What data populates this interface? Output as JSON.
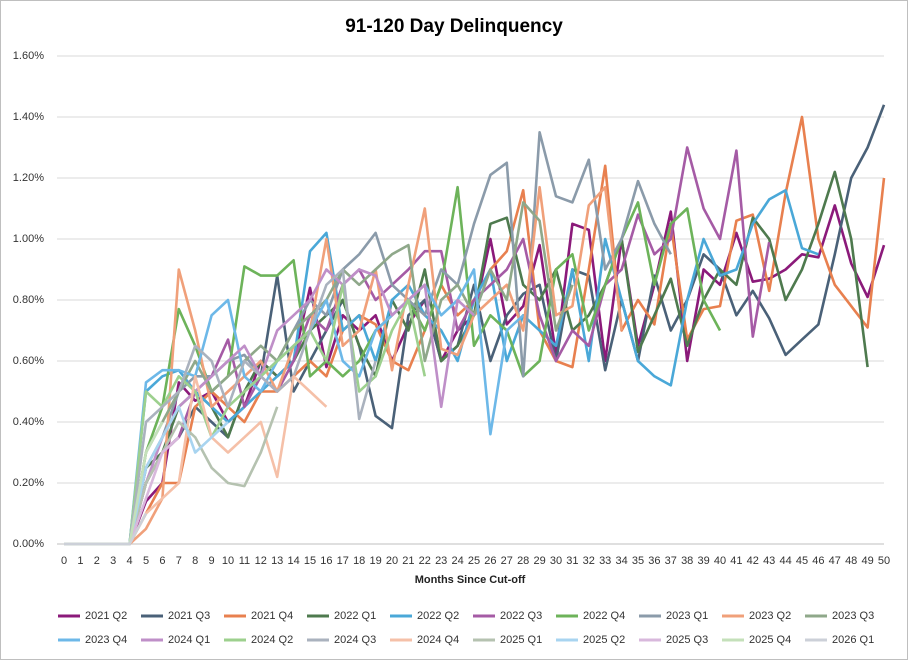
{
  "chart_data": {
    "type": "line",
    "title": "91-120 Day Delinquency",
    "x_label": "Months Since Cut-off",
    "x": [
      0,
      1,
      2,
      3,
      4,
      5,
      6,
      7,
      8,
      9,
      10,
      11,
      12,
      13,
      14,
      15,
      16,
      17,
      18,
      19,
      20,
      21,
      22,
      23,
      24,
      25,
      26,
      27,
      28,
      29,
      30,
      31,
      32,
      33,
      34,
      35,
      36,
      37,
      38,
      39,
      40,
      41,
      42,
      43,
      44,
      45,
      46,
      47,
      48,
      49,
      50
    ],
    "xlim": [
      0,
      50
    ],
    "ylim": [
      0,
      1.6
    ],
    "yticks": [
      {
        "value": 0,
        "label": "0.00%"
      },
      {
        "value": 0.2,
        "label": "0.20%"
      },
      {
        "value": 0.4,
        "label": "0.40%"
      },
      {
        "value": 0.6,
        "label": "0.60%"
      },
      {
        "value": 0.8,
        "label": "0.80%"
      },
      {
        "value": 1.0,
        "label": "1.00%"
      },
      {
        "value": 1.2,
        "label": "1.20%"
      },
      {
        "value": 1.4,
        "label": "1.40%"
      },
      {
        "value": 1.6,
        "label": "1.60%"
      }
    ],
    "grid": true,
    "legend": "bottom",
    "series": [
      {
        "name": "2021 Q2",
        "color": "#8b1a7a",
        "values": [
          0,
          0,
          0,
          0,
          0,
          0.14,
          0.2,
          0.53,
          0.47,
          0.5,
          0.4,
          0.45,
          0.6,
          0.55,
          0.6,
          0.84,
          0.58,
          0.75,
          0.7,
          0.75,
          0.6,
          0.72,
          0.8,
          0.6,
          0.7,
          0.75,
          1.0,
          0.72,
          0.78,
          0.98,
          0.62,
          1.05,
          1.03,
          0.6,
          1.0,
          0.65,
          0.85,
          1.09,
          0.6,
          0.9,
          0.85,
          1.02,
          0.86,
          0.87,
          0.9,
          0.95,
          0.94,
          1.11,
          0.92,
          0.81,
          0.98
        ]
      },
      {
        "name": "2021 Q3",
        "color": "#4a6178",
        "values": [
          0,
          0,
          0,
          0,
          0,
          0.2,
          0.3,
          0.35,
          0.45,
          0.4,
          0.35,
          0.5,
          0.55,
          0.88,
          0.5,
          0.6,
          0.7,
          0.8,
          0.65,
          0.42,
          0.38,
          0.75,
          0.8,
          0.6,
          0.65,
          0.85,
          0.6,
          0.75,
          0.82,
          0.85,
          0.6,
          0.9,
          0.88,
          0.57,
          0.8,
          0.6,
          0.88,
          0.7,
          0.8,
          0.95,
          0.9,
          0.75,
          0.83,
          0.74,
          0.62,
          0.67,
          0.72,
          0.95,
          1.2,
          1.3,
          1.44
        ]
      },
      {
        "name": "2021 Q4",
        "color": "#e8804f",
        "values": [
          0,
          0,
          0,
          0,
          0,
          0.1,
          0.2,
          0.2,
          0.45,
          0.5,
          0.45,
          0.4,
          0.5,
          0.5,
          0.55,
          0.6,
          0.55,
          0.7,
          0.75,
          0.72,
          0.6,
          0.57,
          0.7,
          0.85,
          0.75,
          0.8,
          0.9,
          0.96,
          1.16,
          0.7,
          0.6,
          0.58,
          0.9,
          1.24,
          0.7,
          0.8,
          0.72,
          1.05,
          0.67,
          0.77,
          0.78,
          1.06,
          1.08,
          0.83,
          1.15,
          1.4,
          1.0,
          0.85,
          0.78,
          0.71,
          1.2
        ]
      },
      {
        "name": "2022 Q1",
        "color": "#4e7a4e",
        "values": [
          0,
          0,
          0,
          0,
          0,
          0.25,
          0.3,
          0.45,
          0.5,
          0.45,
          0.35,
          0.5,
          0.6,
          0.55,
          0.6,
          0.7,
          0.75,
          0.8,
          0.65,
          0.55,
          0.8,
          0.7,
          0.9,
          0.6,
          0.65,
          0.75,
          1.05,
          1.07,
          0.85,
          0.8,
          0.9,
          0.7,
          0.75,
          0.85,
          1.0,
          0.63,
          0.75,
          0.87,
          0.65,
          0.8,
          0.9,
          0.85,
          1.07,
          1.0,
          0.8,
          0.9,
          1.05,
          1.22,
          1.0,
          0.58,
          null
        ]
      },
      {
        "name": "2022 Q2",
        "color": "#4aa8d8",
        "values": [
          0,
          0,
          0,
          0,
          0,
          0.5,
          0.55,
          0.57,
          0.5,
          0.45,
          0.4,
          0.45,
          0.5,
          0.55,
          0.6,
          0.96,
          1.02,
          0.7,
          0.75,
          0.6,
          0.8,
          0.85,
          0.75,
          0.7,
          0.6,
          0.8,
          0.9,
          0.6,
          0.75,
          0.7,
          0.65,
          0.9,
          0.6,
          1.0,
          0.8,
          0.6,
          0.55,
          0.52,
          0.8,
          1.0,
          0.88,
          0.9,
          1.05,
          1.13,
          1.16,
          0.97,
          0.95,
          null,
          null,
          null,
          null
        ]
      },
      {
        "name": "2022 Q3",
        "color": "#a55ba5",
        "values": [
          0,
          0,
          0,
          0,
          0,
          0.2,
          0.3,
          0.35,
          0.5,
          0.55,
          0.67,
          0.45,
          0.55,
          0.5,
          0.6,
          0.75,
          0.7,
          0.85,
          0.9,
          0.8,
          0.85,
          0.9,
          0.96,
          0.96,
          0.7,
          0.8,
          0.85,
          0.9,
          1.0,
          0.75,
          0.6,
          0.7,
          0.65,
          0.85,
          0.9,
          1.08,
          0.95,
          1.0,
          1.3,
          1.1,
          1.0,
          1.29,
          0.68,
          0.99,
          null,
          null,
          null,
          null,
          null,
          null,
          null
        ]
      },
      {
        "name": "2022 Q4",
        "color": "#6db35a",
        "values": [
          0,
          0,
          0,
          0,
          0,
          0.3,
          0.45,
          0.77,
          0.65,
          0.5,
          0.55,
          0.91,
          0.88,
          0.88,
          0.93,
          0.55,
          0.6,
          0.55,
          0.6,
          0.7,
          0.75,
          0.8,
          0.7,
          0.85,
          1.17,
          0.65,
          0.75,
          0.7,
          0.55,
          0.6,
          0.9,
          0.95,
          0.7,
          0.85,
          1.0,
          1.12,
          0.85,
          1.05,
          1.1,
          0.8,
          0.7,
          null,
          null,
          null,
          null,
          null,
          null,
          null,
          null,
          null,
          null
        ]
      },
      {
        "name": "2023 Q1",
        "color": "#8b9baa",
        "values": [
          0,
          0,
          0,
          0,
          0,
          0.25,
          0.35,
          0.5,
          0.55,
          0.55,
          0.6,
          0.62,
          0.55,
          0.6,
          0.7,
          0.8,
          0.75,
          0.9,
          0.95,
          1.02,
          0.85,
          0.8,
          0.75,
          0.9,
          0.85,
          1.05,
          1.21,
          1.25,
          0.55,
          1.35,
          1.14,
          1.12,
          1.26,
          0.9,
          1.0,
          1.19,
          1.05,
          0.95,
          null,
          null,
          null,
          null,
          null,
          null,
          null,
          null,
          null,
          null,
          null,
          null,
          null
        ]
      },
      {
        "name": "2023 Q2",
        "color": "#f0a07a",
        "values": [
          0,
          0,
          0,
          0,
          0,
          0.05,
          0.15,
          0.9,
          0.7,
          0.45,
          0.5,
          0.55,
          0.6,
          0.5,
          0.65,
          0.7,
          1.0,
          0.65,
          0.7,
          0.9,
          0.57,
          0.85,
          1.1,
          0.64,
          0.62,
          0.75,
          0.8,
          0.85,
          0.7,
          1.17,
          0.75,
          0.78,
          1.11,
          1.17,
          0.7,
          null,
          null,
          null,
          null,
          null,
          null,
          null,
          null,
          null,
          null,
          null,
          null,
          null,
          null,
          null,
          null
        ]
      },
      {
        "name": "2023 Q3",
        "color": "#8fa88a",
        "values": [
          0,
          0,
          0,
          0,
          0,
          0.3,
          0.4,
          0.5,
          0.6,
          0.5,
          0.55,
          0.6,
          0.65,
          0.6,
          0.7,
          0.75,
          0.8,
          0.9,
          0.85,
          0.9,
          0.95,
          0.98,
          0.6,
          0.8,
          0.85,
          0.75,
          0.9,
          0.8,
          1.12,
          1.06,
          0.7,
          0.85,
          null,
          null,
          null,
          null,
          null,
          null,
          null,
          null,
          null,
          null,
          null,
          null,
          null,
          null,
          null,
          null,
          null,
          null,
          null
        ]
      },
      {
        "name": "2023 Q4",
        "color": "#6db8e8",
        "values": [
          0,
          0,
          0,
          0,
          0,
          0.53,
          0.57,
          0.57,
          0.55,
          0.75,
          0.8,
          0.55,
          0.5,
          0.6,
          0.65,
          0.7,
          0.8,
          0.6,
          0.55,
          0.7,
          0.75,
          0.8,
          0.85,
          0.75,
          0.8,
          0.9,
          0.36,
          0.7,
          0.75,
          null,
          null,
          null,
          null,
          null,
          null,
          null,
          null,
          null,
          null,
          null,
          null,
          null,
          null,
          null,
          null,
          null,
          null,
          null,
          null,
          null,
          null
        ]
      },
      {
        "name": "2024 Q1",
        "color": "#bf8fc8",
        "values": [
          0,
          0,
          0,
          0,
          0,
          0.2,
          0.35,
          0.45,
          0.5,
          0.55,
          0.6,
          0.65,
          0.55,
          0.7,
          0.75,
          0.8,
          0.9,
          0.85,
          0.9,
          0.88,
          0.75,
          0.8,
          0.85,
          0.45,
          0.8,
          0.75,
          null,
          null,
          null,
          null,
          null,
          null,
          null,
          null,
          null,
          null,
          null,
          null,
          null,
          null,
          null,
          null,
          null,
          null,
          null,
          null,
          null,
          null,
          null,
          null,
          null
        ]
      },
      {
        "name": "2024 Q2",
        "color": "#9dd08e",
        "values": [
          0,
          0,
          0,
          0,
          0,
          0.5,
          0.45,
          0.55,
          0.5,
          0.35,
          0.45,
          0.5,
          0.55,
          0.6,
          0.65,
          0.7,
          0.6,
          0.85,
          0.5,
          0.55,
          0.7,
          0.8,
          0.55,
          null,
          null,
          null,
          null,
          null,
          null,
          null,
          null,
          null,
          null,
          null,
          null,
          null,
          null,
          null,
          null,
          null,
          null,
          null,
          null,
          null,
          null,
          null,
          null,
          null,
          null,
          null,
          null
        ]
      },
      {
        "name": "2024 Q3",
        "color": "#aab2be",
        "values": [
          0,
          0,
          0,
          0,
          0,
          0.4,
          0.45,
          0.5,
          0.65,
          0.6,
          0.45,
          0.6,
          0.55,
          0.5,
          0.55,
          0.7,
          0.85,
          0.9,
          0.41,
          0.6,
          null,
          null,
          null,
          null,
          null,
          null,
          null,
          null,
          null,
          null,
          null,
          null,
          null,
          null,
          null,
          null,
          null,
          null,
          null,
          null,
          null,
          null,
          null,
          null,
          null,
          null,
          null,
          null,
          null,
          null,
          null
        ]
      },
      {
        "name": "2024 Q4",
        "color": "#f5c0a8",
        "values": [
          0,
          0,
          0,
          0,
          0,
          0.1,
          0.15,
          0.2,
          0.55,
          0.35,
          0.3,
          0.35,
          0.4,
          0.22,
          0.55,
          0.5,
          0.45,
          null,
          null,
          null,
          null,
          null,
          null,
          null,
          null,
          null,
          null,
          null,
          null,
          null,
          null,
          null,
          null,
          null,
          null,
          null,
          null,
          null,
          null,
          null,
          null,
          null,
          null,
          null,
          null,
          null,
          null,
          null,
          null,
          null,
          null
        ]
      },
      {
        "name": "2025 Q1",
        "color": "#b5c2b0",
        "values": [
          0,
          0,
          0,
          0,
          0,
          0.2,
          0.3,
          0.4,
          0.35,
          0.25,
          0.2,
          0.19,
          0.3,
          0.45,
          null,
          null,
          null,
          null,
          null,
          null,
          null,
          null,
          null,
          null,
          null,
          null,
          null,
          null,
          null,
          null,
          null,
          null,
          null,
          null,
          null,
          null,
          null,
          null,
          null,
          null,
          null,
          null,
          null,
          null,
          null,
          null,
          null,
          null,
          null,
          null,
          null
        ]
      },
      {
        "name": "2025 Q2",
        "color": "#a8d4f0",
        "values": [
          0,
          0,
          0,
          0,
          0,
          0.25,
          0.35,
          0.45,
          0.3,
          0.35,
          0.4,
          null,
          null,
          null,
          null,
          null,
          null,
          null,
          null,
          null,
          null,
          null,
          null,
          null,
          null,
          null,
          null,
          null,
          null,
          null,
          null,
          null,
          null,
          null,
          null,
          null,
          null,
          null,
          null,
          null,
          null,
          null,
          null,
          null,
          null,
          null,
          null,
          null,
          null,
          null,
          null
        ]
      },
      {
        "name": "2025 Q3",
        "color": "#d8b8dc",
        "values": [
          0,
          0,
          0,
          0,
          0,
          0.15,
          0.3,
          0.35,
          null,
          null,
          null,
          null,
          null,
          null,
          null,
          null,
          null,
          null,
          null,
          null,
          null,
          null,
          null,
          null,
          null,
          null,
          null,
          null,
          null,
          null,
          null,
          null,
          null,
          null,
          null,
          null,
          null,
          null,
          null,
          null,
          null,
          null,
          null,
          null,
          null,
          null,
          null,
          null,
          null,
          null,
          null
        ]
      },
      {
        "name": "2025 Q4",
        "color": "#c4e0ba",
        "values": [
          0,
          0,
          0,
          0,
          0,
          0.3,
          0.4,
          null,
          null,
          null,
          null,
          null,
          null,
          null,
          null,
          null,
          null,
          null,
          null,
          null,
          null,
          null,
          null,
          null,
          null,
          null,
          null,
          null,
          null,
          null,
          null,
          null,
          null,
          null,
          null,
          null,
          null,
          null,
          null,
          null,
          null,
          null,
          null,
          null,
          null,
          null,
          null,
          null,
          null,
          null,
          null
        ]
      },
      {
        "name": "2026 Q1",
        "color": "#ccd0d8",
        "values": [
          0,
          0,
          0,
          0,
          0,
          0.1,
          null,
          null,
          null,
          null,
          null,
          null,
          null,
          null,
          null,
          null,
          null,
          null,
          null,
          null,
          null,
          null,
          null,
          null,
          null,
          null,
          null,
          null,
          null,
          null,
          null,
          null,
          null,
          null,
          null,
          null,
          null,
          null,
          null,
          null,
          null,
          null,
          null,
          null,
          null,
          null,
          null,
          null,
          null,
          null,
          null
        ]
      }
    ]
  }
}
